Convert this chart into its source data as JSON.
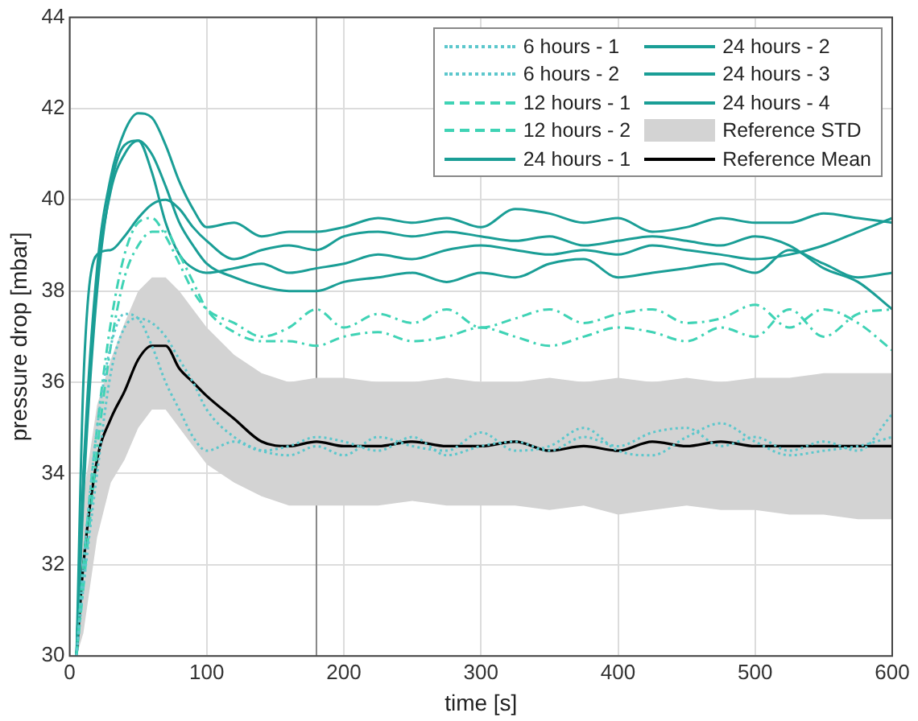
{
  "chart_data": {
    "type": "line",
    "xlabel": "time [s]",
    "ylabel": "pressure drop [mbar]",
    "x": [
      5,
      10,
      20,
      30,
      40,
      50,
      60,
      70,
      80,
      90,
      100,
      120,
      140,
      160,
      180,
      200,
      225,
      250,
      275,
      300,
      325,
      350,
      375,
      400,
      425,
      450,
      475,
      500,
      525,
      550,
      575,
      600
    ],
    "xlim": [
      0,
      600
    ],
    "xticks": [
      0,
      100,
      200,
      300,
      400,
      500,
      600
    ],
    "ylim": [
      30,
      44
    ],
    "yticks": [
      30,
      32,
      34,
      36,
      38,
      40,
      42,
      44
    ],
    "grid": true,
    "legend": "top right",
    "annotations": [
      "Reference STD"
    ],
    "ref_lines": [
      {
        "axis": "x",
        "value": 180,
        "color": "#888888"
      }
    ],
    "series": [
      {
        "name": "6 hours - 1",
        "color": "#5cc7cc",
        "line_style": "dotted",
        "values": [
          30,
          32,
          35,
          36.8,
          37.5,
          37.4,
          36.8,
          36.0,
          35.4,
          34.8,
          34.5,
          34.7,
          34.5,
          34.6,
          34.8,
          34.7,
          34.5,
          34.8,
          34.4,
          34.6,
          34.7,
          34.5,
          34.8,
          34.6,
          34.9,
          35.0,
          34.6,
          34.8,
          34.5,
          34.7,
          34.5,
          35.3
        ]
      },
      {
        "name": "6 hours - 2",
        "color": "#5cc7cc",
        "line_style": "dotted",
        "values": [
          30,
          31.5,
          34,
          36.2,
          37.2,
          37.4,
          37.3,
          37.0,
          36.5,
          36.0,
          35.4,
          34.8,
          34.5,
          34.4,
          34.6,
          34.4,
          34.8,
          34.6,
          34.5,
          34.9,
          34.5,
          34.6,
          35.0,
          34.5,
          34.4,
          34.8,
          35.1,
          34.7,
          34.4,
          34.5,
          34.6,
          34.8
        ]
      },
      {
        "name": "12 hours - 1",
        "color": "#3fd3b5",
        "line_style": "dashed",
        "values": [
          30,
          32,
          35,
          37.3,
          38.8,
          39.5,
          39.6,
          39.2,
          38.6,
          38.0,
          37.6,
          37.3,
          37.0,
          37.2,
          37.6,
          37.2,
          37.5,
          37.3,
          37.6,
          37.2,
          37.4,
          37.6,
          37.3,
          37.5,
          37.6,
          37.3,
          37.4,
          37.7,
          37.2,
          37.6,
          37.3,
          36.7
        ]
      },
      {
        "name": "12 hours - 2",
        "color": "#3fd3b5",
        "line_style": "dashed",
        "values": [
          30,
          31.5,
          34.5,
          36.8,
          38.3,
          39.0,
          39.3,
          39.3,
          38.8,
          38.2,
          37.6,
          37.1,
          36.9,
          36.9,
          36.8,
          37.0,
          37.1,
          36.9,
          37.0,
          37.2,
          37.0,
          36.8,
          37.0,
          37.2,
          37.1,
          36.9,
          37.2,
          37.0,
          37.6,
          37.0,
          37.5,
          37.6
        ]
      },
      {
        "name": "24 hours - 1",
        "color": "#1a9e96",
        "line_style": "solid",
        "values": [
          30,
          34,
          38.5,
          40.5,
          41.5,
          41.9,
          41.8,
          41.2,
          40.4,
          39.8,
          39.4,
          39.5,
          39.2,
          39.3,
          39.3,
          39.4,
          39.6,
          39.5,
          39.6,
          39.4,
          39.8,
          39.7,
          39.5,
          39.6,
          39.3,
          39.4,
          39.6,
          39.5,
          39.5,
          39.7,
          39.6,
          39.5
        ]
      },
      {
        "name": "24 hours - 2",
        "color": "#1a9e96",
        "line_style": "solid",
        "values": [
          30,
          33.5,
          38,
          40.3,
          41.2,
          41.3,
          40.6,
          39.5,
          38.8,
          38.5,
          38.4,
          38.5,
          38.6,
          38.4,
          38.5,
          38.6,
          38.8,
          38.7,
          38.9,
          39.0,
          38.9,
          38.8,
          38.9,
          38.8,
          39.0,
          38.9,
          38.8,
          38.7,
          38.8,
          39.0,
          39.3,
          39.6
        ]
      },
      {
        "name": "24 hours - 3",
        "color": "#1a9e96",
        "line_style": "solid",
        "values": [
          30,
          33.8,
          38.2,
          40.2,
          41.0,
          41.3,
          41.0,
          40.3,
          39.5,
          39.0,
          38.6,
          38.3,
          38.1,
          38.0,
          38.0,
          38.2,
          38.3,
          38.4,
          38.2,
          38.4,
          38.3,
          38.6,
          38.7,
          38.3,
          38.4,
          38.5,
          38.6,
          38.4,
          38.9,
          38.6,
          38.3,
          38.4
        ]
      },
      {
        "name": "24 hours - 4",
        "color": "#1a9e96",
        "line_style": "solid",
        "values": [
          30,
          36,
          38.8,
          38.9,
          39.2,
          39.6,
          39.9,
          40.0,
          39.8,
          39.4,
          39.1,
          38.7,
          38.9,
          39.0,
          38.9,
          39.2,
          39.3,
          39.2,
          39.3,
          39.2,
          39.1,
          39.2,
          39.0,
          39.1,
          39.2,
          39.1,
          39.0,
          39.2,
          39.0,
          38.5,
          38.2,
          37.6
        ]
      },
      {
        "name": "Reference Mean",
        "color": "#000000",
        "line_style": "solid",
        "values": [
          30,
          32,
          34.3,
          35.2,
          35.8,
          36.5,
          36.8,
          36.8,
          36.3,
          36.0,
          35.7,
          35.2,
          34.7,
          34.6,
          34.7,
          34.6,
          34.6,
          34.7,
          34.6,
          34.6,
          34.7,
          34.5,
          34.6,
          34.5,
          34.7,
          34.6,
          34.7,
          34.6,
          34.6,
          34.6,
          34.6,
          34.6
        ],
        "lower": [
          30,
          30.5,
          32.6,
          33.8,
          34.3,
          35.0,
          35.4,
          35.4,
          35.0,
          34.6,
          34.2,
          33.8,
          33.5,
          33.3,
          33.3,
          33.3,
          33.3,
          33.4,
          33.3,
          33.3,
          33.3,
          33.2,
          33.3,
          33.1,
          33.2,
          33.3,
          33.2,
          33.2,
          33.1,
          33.1,
          33.0,
          33.0
        ],
        "upper": [
          30,
          33.5,
          35.5,
          36.5,
          37.3,
          38.0,
          38.3,
          38.3,
          38.0,
          37.6,
          37.2,
          36.6,
          36.2,
          36.0,
          36.1,
          36.1,
          36.0,
          36.0,
          36.1,
          36.0,
          36.0,
          36.1,
          36.0,
          36.1,
          36.0,
          36.1,
          36.0,
          36.1,
          36.1,
          36.2,
          36.2,
          36.2
        ]
      }
    ]
  }
}
